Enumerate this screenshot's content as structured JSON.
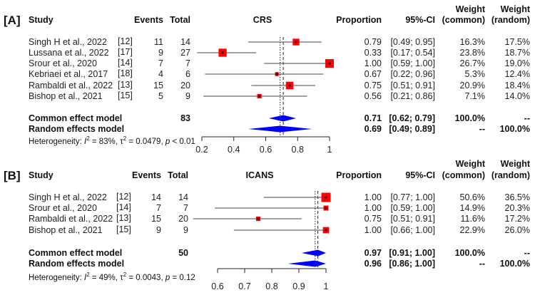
{
  "chart_data": [
    {
      "type": "forest",
      "panel_label": "[A]",
      "title": "CRS",
      "headers": {
        "study": "Study",
        "events": "Events",
        "total": "Total",
        "proportion": "Proportion",
        "ci": "95%-CI",
        "weight_common": [
          "Weight",
          "(common)"
        ],
        "weight_random": [
          "Weight",
          "(random)"
        ]
      },
      "studies": [
        {
          "name": "Singh H et al., 2022",
          "ref": "[12]",
          "events": "11",
          "total": "14",
          "proportion": "0.79",
          "ci": "[0.49; 0.95]",
          "w_common": "16.3%",
          "w_random": "17.5%",
          "est": 0.79,
          "lo": 0.49,
          "hi": 0.95,
          "weight": 16.3
        },
        {
          "name": "Lussana et al., 2022",
          "ref": "[17]",
          "events": "9",
          "total": "27",
          "proportion": "0.33",
          "ci": "[0.17; 0.54]",
          "w_common": "23.8%",
          "w_random": "18.7%",
          "est": 0.33,
          "lo": 0.17,
          "hi": 0.54,
          "weight": 23.8
        },
        {
          "name": "Srour  et al., 2020",
          "ref": "[14]",
          "events": "7",
          "total": "7",
          "proportion": "1.00",
          "ci": "[0.59; 1.00]",
          "w_common": "26.7%",
          "w_random": "19.0%",
          "est": 1.0,
          "lo": 0.59,
          "hi": 1.0,
          "weight": 26.7
        },
        {
          "name": "Kebriaei  et al., 2017",
          "ref": "[18]",
          "events": "4",
          "total": "6",
          "proportion": "0.67",
          "ci": "[0.22; 0.96]",
          "w_common": "5.3%",
          "w_random": "12.4%",
          "est": 0.67,
          "lo": 0.22,
          "hi": 0.96,
          "weight": 5.3
        },
        {
          "name": "Rambaldi et al., 2022",
          "ref": "[13]",
          "events": "15",
          "total": "20",
          "proportion": "0.75",
          "ci": "[0.51; 0.91]",
          "w_common": "20.9%",
          "w_random": "18.4%",
          "est": 0.75,
          "lo": 0.51,
          "hi": 0.91,
          "weight": 20.9
        },
        {
          "name": "Bishop et al., 2021",
          "ref": "[15]",
          "events": "5",
          "total": "9",
          "proportion": "0.56",
          "ci": "[0.21; 0.86]",
          "w_common": "7.1%",
          "w_random": "14.0%",
          "est": 0.56,
          "lo": 0.21,
          "hi": 0.86,
          "weight": 7.1
        }
      ],
      "common": {
        "label": "Common effect model",
        "total": "83",
        "proportion": "0.71",
        "ci": "[0.62; 0.79]",
        "w_common": "100.0%",
        "w_random": "--",
        "est": 0.71,
        "lo": 0.62,
        "hi": 0.79
      },
      "random": {
        "label": "Random effects model",
        "proportion": "0.69",
        "ci": "[0.49; 0.89]",
        "w_common": "--",
        "w_random": "100.0%",
        "est": 0.69,
        "lo": 0.49,
        "hi": 0.89
      },
      "heterogeneity": {
        "prefix": "Heterogeneity: ",
        "i_sym": "I",
        "i2": " = 83%, ",
        "tau_sym": "τ",
        "tau2": " = 0.0479, ",
        "p_sym": "p",
        "p": " < 0.01",
        "sup": "2"
      },
      "xlim": [
        0.2,
        1
      ],
      "ticks": [
        "0.2",
        "0.4",
        "0.6",
        "0.8",
        "1"
      ]
    },
    {
      "type": "forest",
      "panel_label": "[B]",
      "title": "ICANS",
      "headers": {
        "study": "Study",
        "events": "Events",
        "total": "Total",
        "proportion": "Proportion",
        "ci": "95%-CI",
        "weight_common": [
          "Weight",
          "(common)"
        ],
        "weight_random": [
          "Weight",
          "(random)"
        ]
      },
      "studies": [
        {
          "name": "Singh H et al., 2022",
          "ref": "[12]",
          "events": "14",
          "total": "14",
          "proportion": "1.00",
          "ci": "[0.77; 1.00]",
          "w_common": "50.6%",
          "w_random": "36.5%",
          "est": 1.0,
          "lo": 0.77,
          "hi": 1.0,
          "weight": 50.6
        },
        {
          "name": "Srour  et al., 2020",
          "ref": "[14]",
          "events": "7",
          "total": "7",
          "proportion": "1.00",
          "ci": "[0.59; 1.00]",
          "w_common": "14.9%",
          "w_random": "20.3%",
          "est": 1.0,
          "lo": 0.59,
          "hi": 1.0,
          "weight": 14.9
        },
        {
          "name": "Rambaldi et al., 2022",
          "ref": "[13]",
          "events": "15",
          "total": "20",
          "proportion": "0.75",
          "ci": "[0.51; 0.91]",
          "w_common": "11.6%",
          "w_random": "17.2%",
          "est": 0.75,
          "lo": 0.51,
          "hi": 0.91,
          "weight": 11.6
        },
        {
          "name": "Bishop et al., 2021",
          "ref": "[15]",
          "events": "9",
          "total": "9",
          "proportion": "1.00",
          "ci": "[0.66; 1.00]",
          "w_common": "22.9%",
          "w_random": "26.0%",
          "est": 1.0,
          "lo": 0.66,
          "hi": 1.0,
          "weight": 22.9
        }
      ],
      "common": {
        "label": "Common effect model",
        "total": "50",
        "proportion": "0.97",
        "ci": "[0.91; 1.00]",
        "w_common": "100.0%",
        "w_random": "--",
        "est": 0.97,
        "lo": 0.91,
        "hi": 1.0
      },
      "random": {
        "label": "Random effects model",
        "proportion": "0.96",
        "ci": "[0.86; 1.00]",
        "w_common": "--",
        "w_random": "100.0%",
        "est": 0.96,
        "lo": 0.86,
        "hi": 1.0
      },
      "heterogeneity": {
        "prefix": "Heterogeneity: ",
        "i_sym": "I",
        "i2": " = 49%, ",
        "tau_sym": "τ",
        "tau2": " = 0.0043, ",
        "p_sym": "p",
        "p": " = 0.12",
        "sup": "2"
      },
      "xlim": [
        0.6,
        1
      ],
      "ticks": [
        "0.6",
        "0.7",
        "0.8",
        "0.9",
        "1"
      ]
    }
  ],
  "colors": {
    "square": "#ff0000",
    "diamond": "#0000ff",
    "line": "#333333"
  }
}
